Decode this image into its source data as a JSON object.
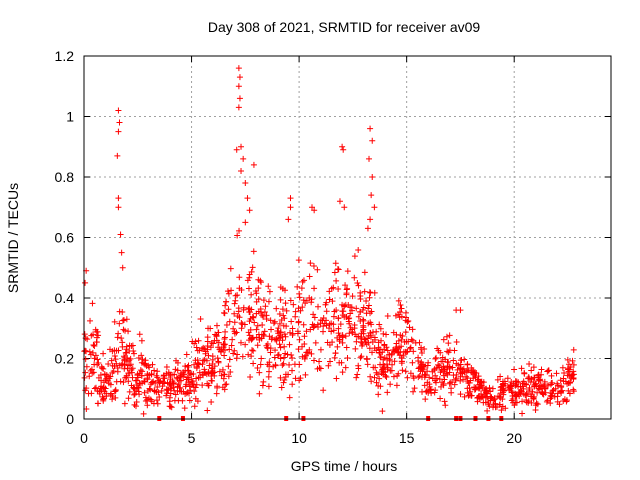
{
  "chart_data": {
    "type": "scatter",
    "title": "Day 308 of 2021, SRMTID for receiver av09",
    "xlabel": "GPS time / hours",
    "ylabel": "SRMTID / TECUs",
    "xlim": [
      0,
      24.5
    ],
    "ylim": [
      0,
      1.2
    ],
    "xticks": [
      0,
      5,
      10,
      15,
      20
    ],
    "yticks": [
      0,
      0.2,
      0.4,
      0.6,
      0.8,
      1,
      1.2
    ],
    "xtick_labels": [
      "0",
      "5",
      "10",
      "15",
      "20"
    ],
    "ytick_labels": [
      "0",
      "0.2",
      "0.4",
      "0.6",
      "0.8",
      "1",
      "1.2"
    ],
    "grid": true,
    "marker": "+",
    "color": "#ff0000",
    "envelope": [
      {
        "x": 0.0,
        "base": 0.18,
        "spread": 0.12
      },
      {
        "x": 0.5,
        "base": 0.2,
        "spread": 0.12
      },
      {
        "x": 1.0,
        "base": 0.12,
        "spread": 0.06
      },
      {
        "x": 1.7,
        "base": 0.22,
        "spread": 0.1
      },
      {
        "x": 2.5,
        "base": 0.15,
        "spread": 0.08
      },
      {
        "x": 3.5,
        "base": 0.11,
        "spread": 0.05
      },
      {
        "x": 4.5,
        "base": 0.11,
        "spread": 0.06
      },
      {
        "x": 5.5,
        "base": 0.18,
        "spread": 0.1
      },
      {
        "x": 6.5,
        "base": 0.22,
        "spread": 0.1
      },
      {
        "x": 7.2,
        "base": 0.4,
        "spread": 0.18
      },
      {
        "x": 8.0,
        "base": 0.3,
        "spread": 0.14
      },
      {
        "x": 9.0,
        "base": 0.25,
        "spread": 0.12
      },
      {
        "x": 10.0,
        "base": 0.32,
        "spread": 0.14
      },
      {
        "x": 11.0,
        "base": 0.3,
        "spread": 0.12
      },
      {
        "x": 12.0,
        "base": 0.33,
        "spread": 0.15
      },
      {
        "x": 13.0,
        "base": 0.3,
        "spread": 0.14
      },
      {
        "x": 14.0,
        "base": 0.18,
        "spread": 0.1
      },
      {
        "x": 15.0,
        "base": 0.25,
        "spread": 0.12
      },
      {
        "x": 16.0,
        "base": 0.12,
        "spread": 0.06
      },
      {
        "x": 17.0,
        "base": 0.18,
        "spread": 0.08
      },
      {
        "x": 18.0,
        "base": 0.12,
        "spread": 0.05
      },
      {
        "x": 19.0,
        "base": 0.07,
        "spread": 0.04
      },
      {
        "x": 20.0,
        "base": 0.09,
        "spread": 0.05
      },
      {
        "x": 21.0,
        "base": 0.11,
        "spread": 0.05
      },
      {
        "x": 22.0,
        "base": 0.1,
        "spread": 0.05
      },
      {
        "x": 22.8,
        "base": 0.14,
        "spread": 0.06
      }
    ],
    "outliers": [
      {
        "x": 0.1,
        "y": 0.49
      },
      {
        "x": 0.05,
        "y": 0.45
      },
      {
        "x": 1.6,
        "y": 1.02
      },
      {
        "x": 1.65,
        "y": 0.98
      },
      {
        "x": 1.6,
        "y": 0.95
      },
      {
        "x": 1.55,
        "y": 0.87
      },
      {
        "x": 1.6,
        "y": 0.73
      },
      {
        "x": 1.6,
        "y": 0.7
      },
      {
        "x": 1.7,
        "y": 0.61
      },
      {
        "x": 1.75,
        "y": 0.55
      },
      {
        "x": 1.8,
        "y": 0.5
      },
      {
        "x": 7.2,
        "y": 1.16
      },
      {
        "x": 7.25,
        "y": 1.13
      },
      {
        "x": 7.2,
        "y": 1.1
      },
      {
        "x": 7.25,
        "y": 1.06
      },
      {
        "x": 7.2,
        "y": 1.03
      },
      {
        "x": 7.1,
        "y": 0.89
      },
      {
        "x": 7.3,
        "y": 0.9
      },
      {
        "x": 7.4,
        "y": 0.86
      },
      {
        "x": 7.3,
        "y": 0.82
      },
      {
        "x": 7.9,
        "y": 0.84
      },
      {
        "x": 7.5,
        "y": 0.78
      },
      {
        "x": 7.6,
        "y": 0.73
      },
      {
        "x": 7.7,
        "y": 0.69
      },
      {
        "x": 7.5,
        "y": 0.65
      },
      {
        "x": 9.6,
        "y": 0.73
      },
      {
        "x": 9.6,
        "y": 0.7
      },
      {
        "x": 9.5,
        "y": 0.66
      },
      {
        "x": 10.6,
        "y": 0.7
      },
      {
        "x": 10.7,
        "y": 0.69
      },
      {
        "x": 12.0,
        "y": 0.9
      },
      {
        "x": 12.05,
        "y": 0.89
      },
      {
        "x": 11.9,
        "y": 0.72
      },
      {
        "x": 12.1,
        "y": 0.7
      },
      {
        "x": 13.3,
        "y": 0.96
      },
      {
        "x": 13.4,
        "y": 0.92
      },
      {
        "x": 13.25,
        "y": 0.86
      },
      {
        "x": 13.4,
        "y": 0.8
      },
      {
        "x": 13.35,
        "y": 0.74
      },
      {
        "x": 13.5,
        "y": 0.7
      },
      {
        "x": 13.3,
        "y": 0.66
      },
      {
        "x": 13.2,
        "y": 0.63
      },
      {
        "x": 17.3,
        "y": 0.36
      },
      {
        "x": 17.5,
        "y": 0.36
      }
    ],
    "gap_markers_x": [
      3.5,
      4.6,
      9.4,
      10.2,
      16.0,
      17.3,
      17.5,
      18.2,
      18.8,
      19.4
    ]
  }
}
